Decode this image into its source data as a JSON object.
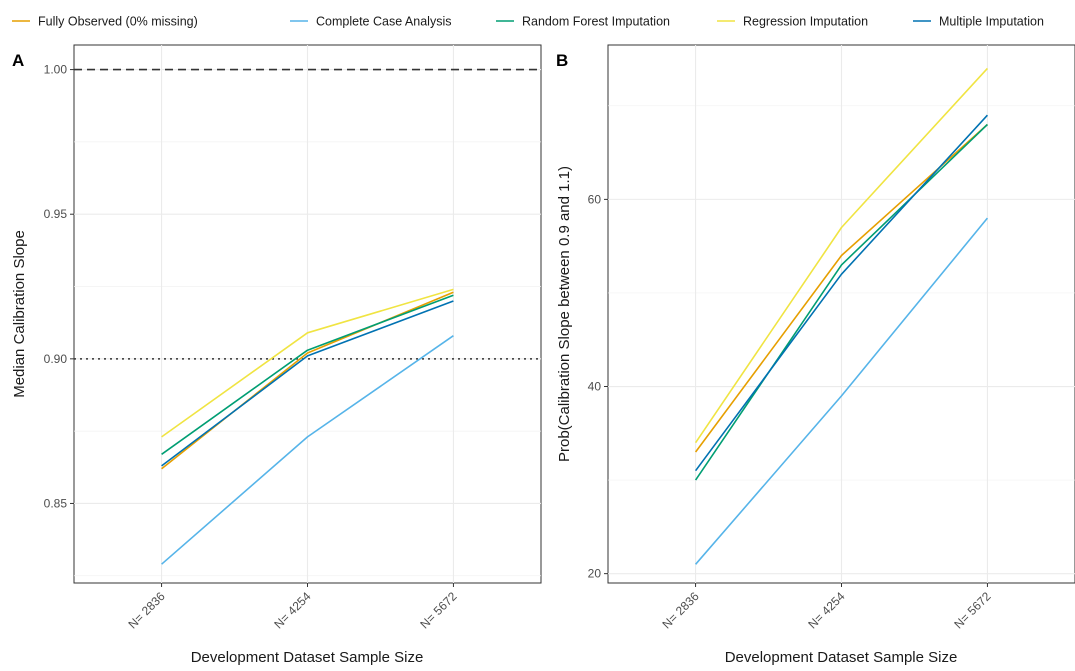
{
  "chart_data": {
    "type": "line",
    "legend_position": "top",
    "legend": [
      {
        "name": "Fully Observed (0% missing)",
        "color": "#E69F00"
      },
      {
        "name": "Complete Case Analysis",
        "color": "#56B4E9"
      },
      {
        "name": "Random Forest Imputation",
        "color": "#009E73"
      },
      {
        "name": "Regression Imputation",
        "color": "#F0E442"
      },
      {
        "name": "Multiple Imputation",
        "color": "#0072B2"
      }
    ],
    "panels": [
      {
        "label": "A",
        "xlabel": "Development Dataset Sample Size",
        "ylabel": "Median Calibration Slope",
        "categories": [
          "N= 2836",
          "N= 4254",
          "N= 5672"
        ],
        "ylim": [
          0.8225,
          1.0085
        ],
        "yticks": [
          0.85,
          0.9,
          0.95,
          1.0
        ],
        "ytick_labels": [
          "0.85",
          "0.90",
          "0.95",
          "1.00"
        ],
        "grid": true,
        "reference_lines": [
          {
            "y": 1.0,
            "style": "dashed"
          },
          {
            "y": 0.9,
            "style": "dotted"
          }
        ],
        "series": [
          {
            "name": "Fully Observed (0% missing)",
            "color": "#E69F00",
            "values": [
              0.862,
              0.902,
              0.923
            ]
          },
          {
            "name": "Complete Case Analysis",
            "color": "#56B4E9",
            "values": [
              0.829,
              0.873,
              0.908
            ]
          },
          {
            "name": "Regression Imputation",
            "color": "#F0E442",
            "values": [
              0.873,
              0.909,
              0.924
            ]
          },
          {
            "name": "Random Forest Imputation",
            "color": "#009E73",
            "values": [
              0.867,
              0.903,
              0.922
            ]
          },
          {
            "name": "Multiple Imputation",
            "color": "#0072B2",
            "values": [
              0.863,
              0.901,
              0.92
            ]
          }
        ]
      },
      {
        "label": "B",
        "xlabel": "Development Dataset Sample Size",
        "ylabel": "Prob(Calibration Slope between 0.9 and 1.1)",
        "categories": [
          "N= 2836",
          "N= 4254",
          "N= 5672"
        ],
        "ylim": [
          19.0,
          76.5
        ],
        "yticks": [
          20,
          40,
          60
        ],
        "ytick_labels": [
          "20",
          "40",
          "60"
        ],
        "grid": true,
        "reference_lines": [],
        "series": [
          {
            "name": "Fully Observed (0% missing)",
            "color": "#E69F00",
            "values": [
              33,
              54,
              68
            ]
          },
          {
            "name": "Complete Case Analysis",
            "color": "#56B4E9",
            "values": [
              21,
              39,
              58
            ]
          },
          {
            "name": "Regression Imputation",
            "color": "#F0E442",
            "values": [
              34,
              57,
              74
            ]
          },
          {
            "name": "Random Forest Imputation",
            "color": "#009E73",
            "values": [
              30,
              53,
              68
            ]
          },
          {
            "name": "Multiple Imputation",
            "color": "#0072B2",
            "values": [
              31,
              52,
              69
            ]
          }
        ]
      }
    ]
  }
}
